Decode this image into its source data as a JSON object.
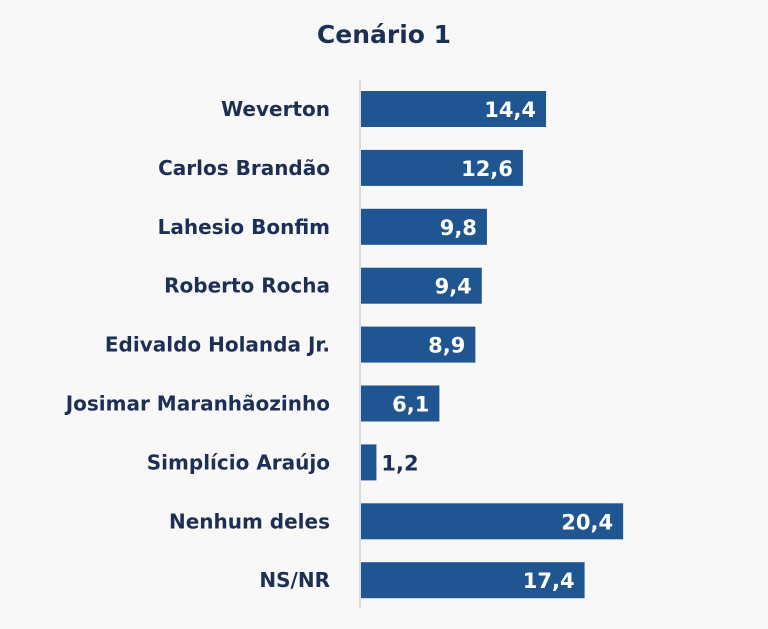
{
  "chart_data": {
    "type": "bar",
    "orientation": "horizontal",
    "title": "Cenário 1",
    "categories": [
      "Weverton",
      "Carlos Brandão",
      "Lahesio Bonfim",
      "Roberto Rocha",
      "Edivaldo Holanda Jr.",
      "Josimar Maranhãozinho",
      "Simplício Araújo",
      "Nenhum deles",
      "NS/NR"
    ],
    "values": [
      14.4,
      12.6,
      9.8,
      9.4,
      8.9,
      6.1,
      1.2,
      20.4,
      17.4
    ],
    "value_labels": [
      "14,4",
      "12,6",
      "9,8",
      "9,4",
      "8,9",
      "6,1",
      "1,2",
      "20,4",
      "17,4"
    ],
    "xlabel": "",
    "ylabel": "",
    "xlim": [
      0,
      25
    ],
    "grid": false,
    "legend": "none",
    "colors": {
      "bar": "#1f5591",
      "text": "#1e2f55",
      "label_inside": "#ffffff",
      "axis": "#cfcfcf"
    }
  }
}
